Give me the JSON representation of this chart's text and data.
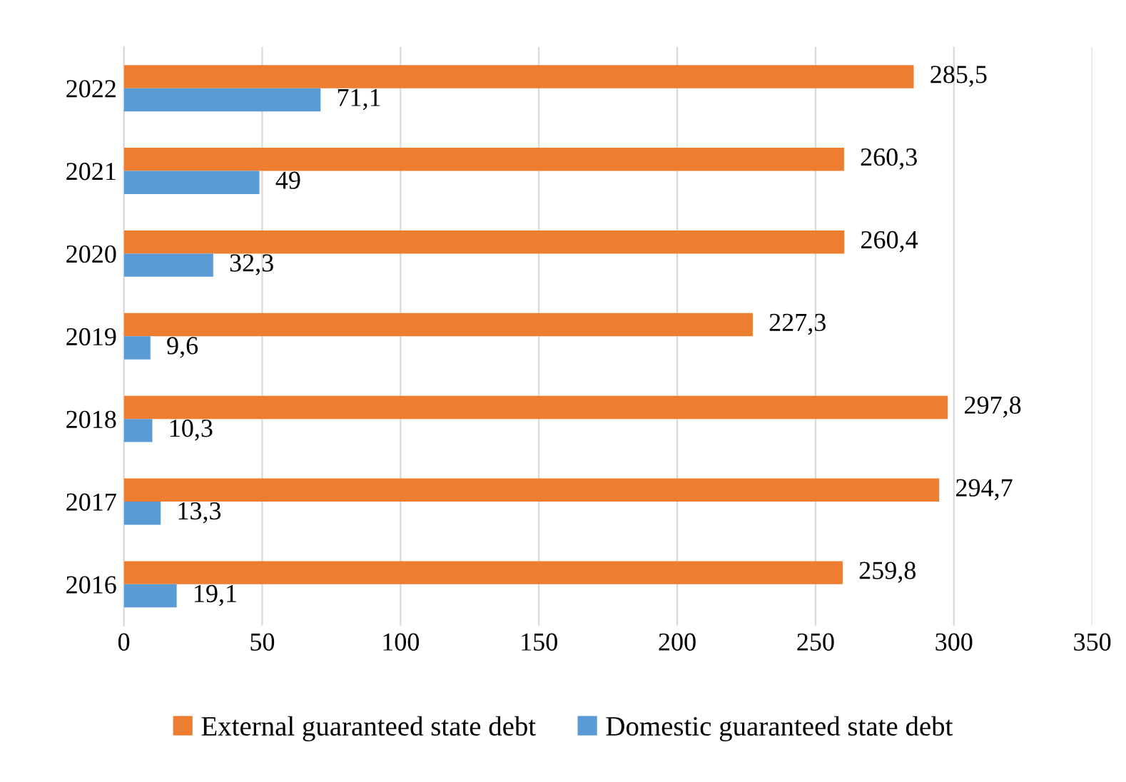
{
  "chart_data": {
    "type": "bar",
    "orientation": "horizontal",
    "categories": [
      "2022",
      "2021",
      "2020",
      "2019",
      "2018",
      "2017",
      "2016"
    ],
    "series": [
      {
        "name": "External guaranteed state debt",
        "color": "#ed7d31",
        "values": [
          285.5,
          260.3,
          260.4,
          227.3,
          297.8,
          294.7,
          259.8
        ],
        "value_labels": [
          "285,5",
          "260,3",
          "260,4",
          "227,3",
          "297,8",
          "294,7",
          "259,8"
        ]
      },
      {
        "name": "Domestic guaranteed state debt",
        "color": "#5b9bd5",
        "values": [
          71.1,
          49,
          32.3,
          9.6,
          10.3,
          13.3,
          19.1
        ],
        "value_labels": [
          "71,1",
          "49",
          "32,3",
          "9,6",
          "10,3",
          "13,3",
          "19,1"
        ]
      }
    ],
    "xlim": [
      0,
      350
    ],
    "xticks": [
      0,
      50,
      100,
      150,
      200,
      250,
      300,
      350
    ],
    "grid": "x",
    "legend": "bottom"
  }
}
